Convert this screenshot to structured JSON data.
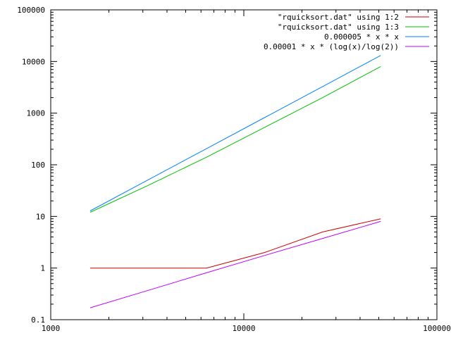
{
  "chart_data": {
    "type": "line",
    "x_scale": "log",
    "y_scale": "log",
    "xlim": [
      1000,
      100000
    ],
    "ylim": [
      0.1,
      100000
    ],
    "x_ticks": [
      1000,
      10000,
      100000
    ],
    "x_tick_labels": [
      "1000",
      "10000",
      "100000"
    ],
    "y_ticks": [
      0.1,
      1,
      10,
      100,
      1000,
      10000,
      100000
    ],
    "y_tick_labels": [
      "0.1",
      "1",
      "10",
      "100",
      "1000",
      "10000",
      "100000"
    ],
    "grid": false,
    "legend_position": "top-right",
    "series": [
      {
        "name": "\"rquicksort.dat\" using 1:2",
        "color": "#cc0000",
        "x": [
          1600,
          3200,
          6400,
          12800,
          25600,
          51200
        ],
        "y": [
          1,
          1,
          1,
          2,
          5,
          9
        ]
      },
      {
        "name": "\"rquicksort.dat\" using 1:3",
        "color": "#00c000",
        "x": [
          1600,
          3200,
          6400,
          12800,
          25600,
          51200
        ],
        "y": [
          12,
          40,
          140,
          530,
          2000,
          8000
        ]
      },
      {
        "name": "0.000005 * x * x",
        "color": "#0080ff",
        "x": [
          1600,
          3200,
          6400,
          12800,
          25600,
          51200
        ],
        "y": [
          12.8,
          51.2,
          204.8,
          819.2,
          3276.8,
          13107.2
        ]
      },
      {
        "name": "0.00001 * x * (log(x)/log(2))",
        "color": "#c000ff",
        "x": [
          1600,
          3200,
          6400,
          12800,
          25600,
          51200
        ],
        "y": [
          0.17,
          0.37,
          0.81,
          1.75,
          3.75,
          8.0
        ]
      }
    ]
  }
}
